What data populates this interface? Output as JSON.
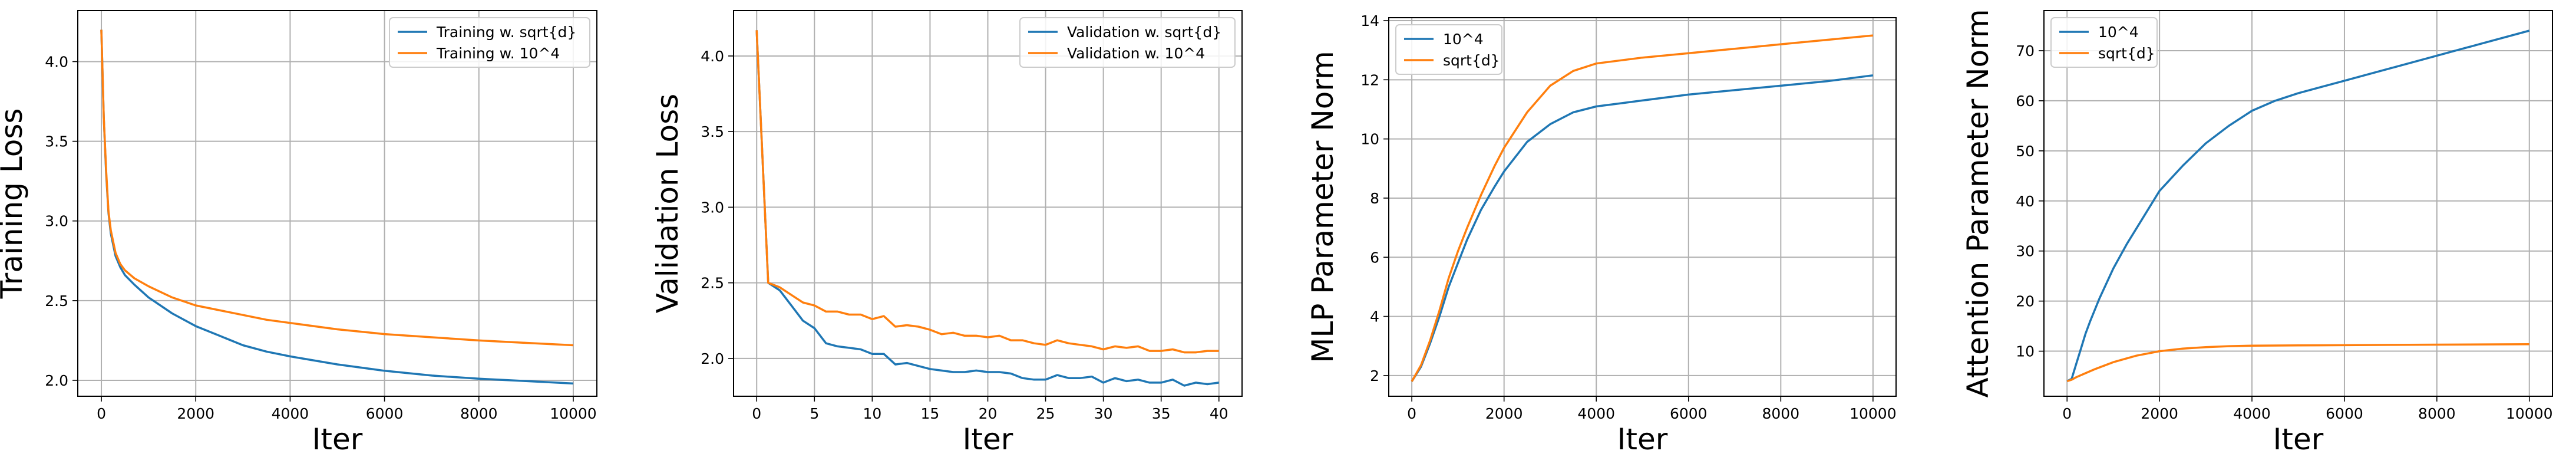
{
  "chart_data": [
    {
      "type": "line",
      "title": "",
      "xlabel": "Iter",
      "ylabel": "Training Loss",
      "xlim": [
        -500,
        10500
      ],
      "ylim": [
        1.9,
        4.32
      ],
      "xticks": [
        0,
        2000,
        4000,
        6000,
        8000,
        10000
      ],
      "yticks": [
        2.0,
        2.5,
        3.0,
        3.5,
        4.0
      ],
      "xtick_labels": [
        "0",
        "2000",
        "4000",
        "6000",
        "8000",
        "10000"
      ],
      "ytick_labels": [
        "2.0",
        "2.5",
        "3.0",
        "3.5",
        "4.0"
      ],
      "grid": true,
      "legend_position": "top-right",
      "series": [
        {
          "name": "Training w. sqrt{d}",
          "color": "#1f77b4",
          "x": [
            0,
            50,
            100,
            150,
            200,
            300,
            400,
            500,
            700,
            1000,
            1500,
            2000,
            2500,
            3000,
            3500,
            4000,
            5000,
            6000,
            7000,
            8000,
            9000,
            10000
          ],
          "y": [
            4.2,
            3.65,
            3.3,
            3.05,
            2.92,
            2.78,
            2.71,
            2.66,
            2.6,
            2.52,
            2.42,
            2.34,
            2.28,
            2.22,
            2.18,
            2.15,
            2.1,
            2.06,
            2.03,
            2.01,
            1.995,
            1.98
          ]
        },
        {
          "name": "Training w. 10^4",
          "color": "#ff7f0e",
          "x": [
            0,
            50,
            100,
            150,
            200,
            300,
            400,
            500,
            700,
            1000,
            1500,
            2000,
            2500,
            3000,
            3500,
            4000,
            5000,
            6000,
            7000,
            8000,
            9000,
            10000
          ],
          "y": [
            4.2,
            3.65,
            3.32,
            3.06,
            2.94,
            2.8,
            2.73,
            2.69,
            2.64,
            2.59,
            2.52,
            2.47,
            2.44,
            2.41,
            2.38,
            2.36,
            2.32,
            2.29,
            2.27,
            2.25,
            2.235,
            2.22
          ]
        }
      ]
    },
    {
      "type": "line",
      "title": "",
      "xlabel": "Iter",
      "ylabel": "Validation Loss",
      "xlim": [
        -2,
        42
      ],
      "ylim": [
        1.75,
        4.3
      ],
      "xticks": [
        0,
        5,
        10,
        15,
        20,
        25,
        30,
        35,
        40
      ],
      "yticks": [
        2.0,
        2.5,
        3.0,
        3.5,
        4.0
      ],
      "xtick_labels": [
        "0",
        "5",
        "10",
        "15",
        "20",
        "25",
        "30",
        "35",
        "40"
      ],
      "ytick_labels": [
        "2.0",
        "2.5",
        "3.0",
        "3.5",
        "4.0"
      ],
      "grid": true,
      "legend_position": "top-right",
      "series": [
        {
          "name": "Validation w. sqrt{d}",
          "color": "#1f77b4",
          "x": [
            0,
            1,
            2,
            3,
            4,
            5,
            6,
            7,
            8,
            9,
            10,
            11,
            12,
            13,
            14,
            15,
            16,
            17,
            18,
            19,
            20,
            21,
            22,
            23,
            24,
            25,
            26,
            27,
            28,
            29,
            30,
            31,
            32,
            33,
            34,
            35,
            36,
            37,
            38,
            39,
            40
          ],
          "y": [
            4.17,
            2.5,
            2.45,
            2.35,
            2.25,
            2.2,
            2.1,
            2.08,
            2.07,
            2.06,
            2.03,
            2.03,
            1.96,
            1.97,
            1.95,
            1.93,
            1.92,
            1.91,
            1.91,
            1.92,
            1.91,
            1.91,
            1.9,
            1.87,
            1.86,
            1.86,
            1.89,
            1.87,
            1.87,
            1.88,
            1.84,
            1.87,
            1.85,
            1.86,
            1.84,
            1.84,
            1.86,
            1.82,
            1.84,
            1.83,
            1.84
          ]
        },
        {
          "name": "Validation w. 10^4",
          "color": "#ff7f0e",
          "x": [
            0,
            1,
            2,
            3,
            4,
            5,
            6,
            7,
            8,
            9,
            10,
            11,
            12,
            13,
            14,
            15,
            16,
            17,
            18,
            19,
            20,
            21,
            22,
            23,
            24,
            25,
            26,
            27,
            28,
            29,
            30,
            31,
            32,
            33,
            34,
            35,
            36,
            37,
            38,
            39,
            40
          ],
          "y": [
            4.17,
            2.5,
            2.47,
            2.42,
            2.37,
            2.35,
            2.31,
            2.31,
            2.29,
            2.29,
            2.26,
            2.28,
            2.21,
            2.22,
            2.21,
            2.19,
            2.16,
            2.17,
            2.15,
            2.15,
            2.14,
            2.15,
            2.12,
            2.12,
            2.1,
            2.09,
            2.12,
            2.1,
            2.09,
            2.08,
            2.06,
            2.08,
            2.07,
            2.08,
            2.05,
            2.05,
            2.06,
            2.04,
            2.04,
            2.05,
            2.05
          ]
        }
      ]
    },
    {
      "type": "line",
      "title": "",
      "xlabel": "Iter",
      "ylabel": "MLP Parameter Norm",
      "xlim": [
        -500,
        10500
      ],
      "ylim": [
        1.3,
        14.1
      ],
      "xticks": [
        0,
        2000,
        4000,
        6000,
        8000,
        10000
      ],
      "yticks": [
        2,
        4,
        6,
        8,
        10,
        12,
        14
      ],
      "xtick_labels": [
        "0",
        "2000",
        "4000",
        "6000",
        "8000",
        "10000"
      ],
      "ytick_labels": [
        "2",
        "4",
        "6",
        "8",
        "10",
        "12",
        "14"
      ],
      "grid": true,
      "legend_position": "top-left",
      "series": [
        {
          "name": "10^4",
          "color": "#1f77b4",
          "x": [
            0,
            200,
            400,
            600,
            800,
            1000,
            1200,
            1500,
            1800,
            2000,
            2500,
            3000,
            3500,
            4000,
            4500,
            5000,
            6000,
            7000,
            8000,
            9000,
            10000
          ],
          "y": [
            1.8,
            2.3,
            3.1,
            4.0,
            5.0,
            5.8,
            6.6,
            7.6,
            8.4,
            8.9,
            9.9,
            10.5,
            10.9,
            11.1,
            11.2,
            11.3,
            11.5,
            11.65,
            11.8,
            11.95,
            12.15
          ]
        },
        {
          "name": "sqrt{d}",
          "color": "#ff7f0e",
          "x": [
            0,
            200,
            400,
            600,
            800,
            1000,
            1200,
            1500,
            1800,
            2000,
            2500,
            3000,
            3500,
            4000,
            4500,
            5000,
            6000,
            7000,
            8000,
            9000,
            10000
          ],
          "y": [
            1.8,
            2.35,
            3.2,
            4.2,
            5.3,
            6.2,
            7.0,
            8.1,
            9.1,
            9.7,
            10.9,
            11.8,
            12.3,
            12.55,
            12.65,
            12.75,
            12.9,
            13.05,
            13.2,
            13.35,
            13.5
          ]
        }
      ]
    },
    {
      "type": "line",
      "title": "",
      "xlabel": "Iter",
      "ylabel": "Attention Parameter Norm",
      "xlim": [
        -500,
        10500
      ],
      "ylim": [
        1.0,
        78.0
      ],
      "xticks": [
        0,
        2000,
        4000,
        6000,
        8000,
        10000
      ],
      "yticks": [
        10,
        20,
        30,
        40,
        50,
        60,
        70
      ],
      "xtick_labels": [
        "0",
        "2000",
        "4000",
        "6000",
        "8000",
        "10000"
      ],
      "ytick_labels": [
        "10",
        "20",
        "30",
        "40",
        "50",
        "60",
        "70"
      ],
      "grid": true,
      "legend_position": "top-left",
      "series": [
        {
          "name": "10^4",
          "color": "#1f77b4",
          "x": [
            0,
            100,
            200,
            300,
            400,
            500,
            700,
            1000,
            1300,
            1600,
            2000,
            2500,
            3000,
            3500,
            4000,
            4500,
            5000,
            6000,
            7000,
            8000,
            9000,
            10000
          ],
          "y": [
            4.0,
            4.5,
            7.5,
            10.5,
            13.5,
            16.0,
            20.5,
            26.5,
            31.5,
            36.0,
            42.0,
            47.0,
            51.5,
            55.0,
            58.0,
            60.0,
            61.5,
            64.0,
            66.5,
            69.0,
            71.5,
            74.0
          ]
        },
        {
          "name": "sqrt{d}",
          "color": "#ff7f0e",
          "x": [
            0,
            100,
            200,
            400,
            600,
            800,
            1000,
            1500,
            2000,
            2500,
            3000,
            3500,
            4000,
            5000,
            6000,
            7000,
            8000,
            9000,
            10000
          ],
          "y": [
            4.0,
            4.3,
            4.8,
            5.6,
            6.4,
            7.1,
            7.8,
            9.1,
            10.0,
            10.5,
            10.8,
            11.0,
            11.1,
            11.15,
            11.2,
            11.25,
            11.3,
            11.35,
            11.4
          ]
        }
      ]
    }
  ]
}
